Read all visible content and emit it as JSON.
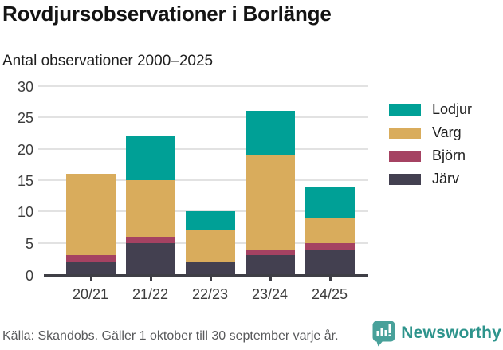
{
  "header": {
    "title": "Rovdjursobservationer i Borlänge",
    "subtitle": "Antal observationer 2000–2025"
  },
  "chart_data": {
    "type": "bar",
    "stacked": true,
    "title": "Rovdjursobservationer i Borlänge",
    "subtitle": "Antal observationer 2000–2025",
    "xlabel": "",
    "ylabel": "",
    "categories": [
      "20/21",
      "21/22",
      "22/23",
      "23/24",
      "24/25"
    ],
    "series": [
      {
        "name": "Järv",
        "color": "#434050",
        "values": [
          2,
          5,
          2,
          3,
          4
        ]
      },
      {
        "name": "Björn",
        "color": "#a54262",
        "values": [
          1,
          1,
          0,
          1,
          1
        ]
      },
      {
        "name": "Varg",
        "color": "#d9ac5c",
        "values": [
          13,
          9,
          5,
          15,
          4
        ]
      },
      {
        "name": "Lodjur",
        "color": "#00a096",
        "values": [
          0,
          7,
          3,
          7,
          5
        ]
      }
    ],
    "stack_totals": [
      16,
      22,
      10,
      26,
      14
    ],
    "stack_order": "bottom-to-top",
    "legend_order": [
      "Lodjur",
      "Varg",
      "Björn",
      "Järv"
    ],
    "legend_position": "right",
    "ylim": [
      0,
      30
    ],
    "yticks": [
      0,
      5,
      10,
      15,
      20,
      25,
      30
    ],
    "grid": true
  },
  "footer": {
    "source": "Källa: Skandobs. Gäller 1 oktober till 30 september varje år.",
    "brand": "Newsworthy",
    "brand_color": "#2e948c",
    "brand_icon": "speech-bubble-bar-chart"
  }
}
